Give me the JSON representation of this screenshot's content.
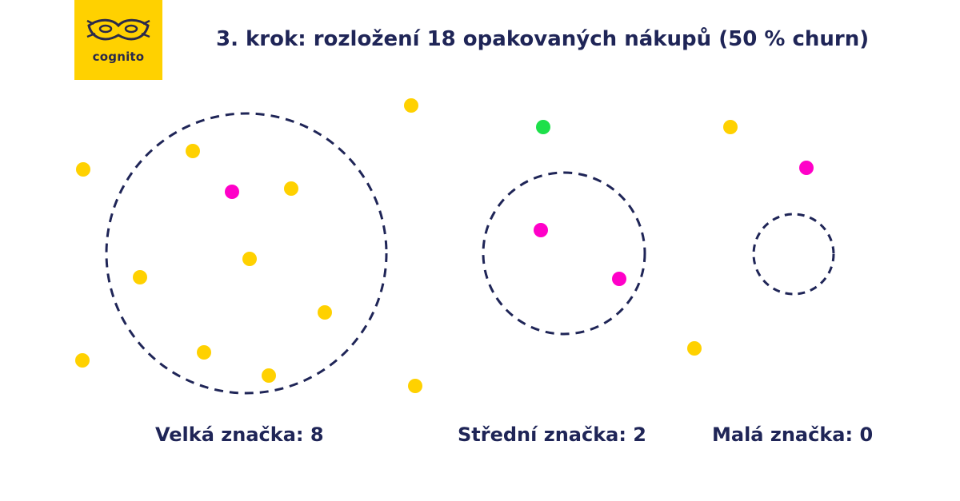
{
  "logo": {
    "wordmark": "cognito"
  },
  "title": "3. krok: rozložení 18 opakovaných nákupů (50 % churn)",
  "colors": {
    "background": "#ffffff",
    "text": "#1f2557",
    "circle_stroke": "#1f2557",
    "dot_yellow": "#ffd100",
    "dot_magenta": "#ff00c8",
    "dot_green": "#1de04a",
    "logo_bg": "#ffd100"
  },
  "groups": [
    {
      "key": "large",
      "label": "Velká značka: 8"
    },
    {
      "key": "medium",
      "label": "Střední značka: 2"
    },
    {
      "key": "small",
      "label": "Malá značka: 0"
    }
  ]
}
